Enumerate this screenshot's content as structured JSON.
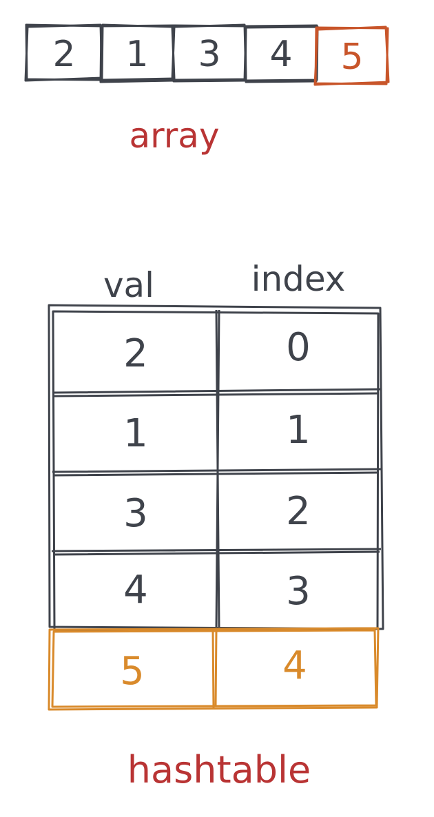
{
  "array": {
    "cells": [
      "2",
      "1",
      "3",
      "4",
      "5"
    ],
    "highlight_index": 4,
    "label": "array"
  },
  "hashtable": {
    "headers": {
      "val": "val",
      "index": "index"
    },
    "rows": [
      {
        "val": "2",
        "index": "0",
        "highlight": false
      },
      {
        "val": "1",
        "index": "1",
        "highlight": false
      },
      {
        "val": "3",
        "index": "2",
        "highlight": false
      },
      {
        "val": "4",
        "index": "3",
        "highlight": false
      },
      {
        "val": "5",
        "index": "4",
        "highlight": true
      }
    ],
    "label": "hashtable"
  },
  "colors": {
    "ink": "#3f434b",
    "array_highlight": "#c8552a",
    "table_highlight": "#d98a2b",
    "label": "#b93434"
  }
}
